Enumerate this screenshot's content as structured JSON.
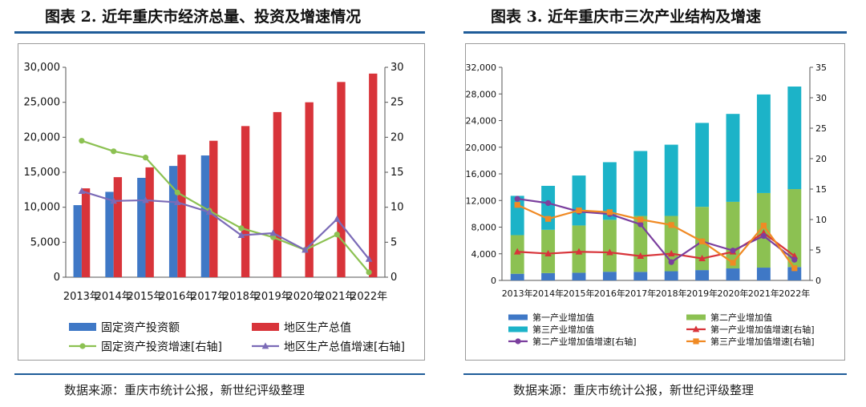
{
  "figures": [
    {
      "title": "图表 2.  近年重庆市经济总量、投资及增速情况",
      "source": "数据来源：重庆市统计公报，新世纪评级整理",
      "chart_data": {
        "type": "bar",
        "categories": [
          "2013年",
          "2014年",
          "2015年",
          "2016年",
          "2017年",
          "2018年",
          "2019年",
          "2020年",
          "2021年",
          "2022年"
        ],
        "left_axis": {
          "ylim": [
            0,
            30000
          ],
          "ticks": [
            "0",
            "5,000",
            "10,000",
            "15,000",
            "20,000",
            "25,000",
            "30,000"
          ]
        },
        "right_axis": {
          "ylim": [
            0,
            30
          ],
          "ticks": [
            "0",
            "5",
            "10",
            "15",
            "20",
            "25",
            "30"
          ]
        },
        "bar_series": [
          {
            "name": "固定资产投资额",
            "color": "#3f78c6",
            "values": [
              10300,
              12200,
              14200,
              15900,
              17400,
              null,
              null,
              null,
              null,
              null
            ]
          },
          {
            "name": "地区生产总值",
            "color": "#d8343a",
            "values": [
              12700,
              14300,
              15700,
              17500,
              19500,
              21600,
              23600,
              25000,
              27900,
              29100
            ]
          }
        ],
        "line_series": [
          {
            "name": "固定资产投资增速[右轴]",
            "color": "#8cc152",
            "marker": "circle",
            "values": [
              19.5,
              18.0,
              17.1,
              12.1,
              9.5,
              7.0,
              5.7,
              3.9,
              6.1,
              0.7
            ]
          },
          {
            "name": "地区生产总值增速[右轴]",
            "color": "#7b6bb7",
            "marker": "triangle",
            "values": [
              12.3,
              10.9,
              11.0,
              10.7,
              9.3,
              6.0,
              6.3,
              3.9,
              8.3,
              2.6
            ]
          }
        ],
        "legend": [
          "固定资产投资额",
          "地区生产总值",
          "固定资产投资增速[右轴]",
          "地区生产总值增速[右轴]"
        ]
      }
    },
    {
      "title": "图表 3.  近年重庆市三次产业结构及增速",
      "source": "数据来源：重庆市统计公报，新世纪评级整理",
      "chart_data": {
        "type": "bar",
        "stacked": true,
        "categories": [
          "2013年",
          "2014年",
          "2015年",
          "2016年",
          "2017年",
          "2018年",
          "2019年",
          "2020年",
          "2021年",
          "2022年"
        ],
        "left_axis": {
          "ylim": [
            0,
            32000
          ],
          "ticks": [
            "0",
            "4,000",
            "8,000",
            "12,000",
            "16,000",
            "20,000",
            "24,000",
            "28,000",
            "32,000"
          ]
        },
        "right_axis": {
          "ylim": [
            0,
            35
          ],
          "ticks": [
            "0",
            "5",
            "10",
            "15",
            "20",
            "25",
            "30",
            "35"
          ]
        },
        "bar_series": [
          {
            "name": "第一产业增加值",
            "color": "#3f78c6",
            "values": [
              1000,
              1100,
              1150,
              1300,
              1280,
              1380,
              1550,
              1800,
              1920,
              2010
            ]
          },
          {
            "name": "第二产业增加值",
            "color": "#8cc152",
            "values": [
              5800,
              6500,
              7100,
              7800,
              8400,
              8300,
              9500,
              10000,
              11200,
              11700
            ]
          },
          {
            "name": "第三产业增加值",
            "color": "#1cb3c8",
            "values": [
              5900,
              6600,
              7500,
              8650,
              9750,
              10700,
              12600,
              13200,
              14800,
              15400
            ]
          }
        ],
        "line_series": [
          {
            "name": "第一产业增加值增速[右轴]",
            "color": "#d8343a",
            "marker": "triangle",
            "values": [
              4.7,
              4.4,
              4.7,
              4.6,
              4.0,
              4.4,
              3.6,
              4.7,
              7.8,
              4.0
            ]
          },
          {
            "name": "第二产业增加值增速[右轴]",
            "color": "#7b3f9e",
            "marker": "circle",
            "values": [
              13.4,
              12.7,
              11.3,
              10.9,
              9.2,
              3.0,
              6.4,
              4.9,
              7.3,
              3.4
            ]
          },
          {
            "name": "第三产业增加值增速[右轴]",
            "color": "#f08a24",
            "marker": "square",
            "values": [
              12.4,
              10.1,
              11.5,
              11.2,
              10.0,
              9.1,
              6.4,
              2.9,
              9.0,
              2.0
            ]
          }
        ],
        "legend": [
          "第一产业增加值",
          "第二产业增加值",
          "第三产业增加值",
          "第一产业增加值增速[右轴]",
          "第二产业增加值增速[右轴]",
          "第三产业增加值增速[右轴]"
        ]
      }
    }
  ]
}
